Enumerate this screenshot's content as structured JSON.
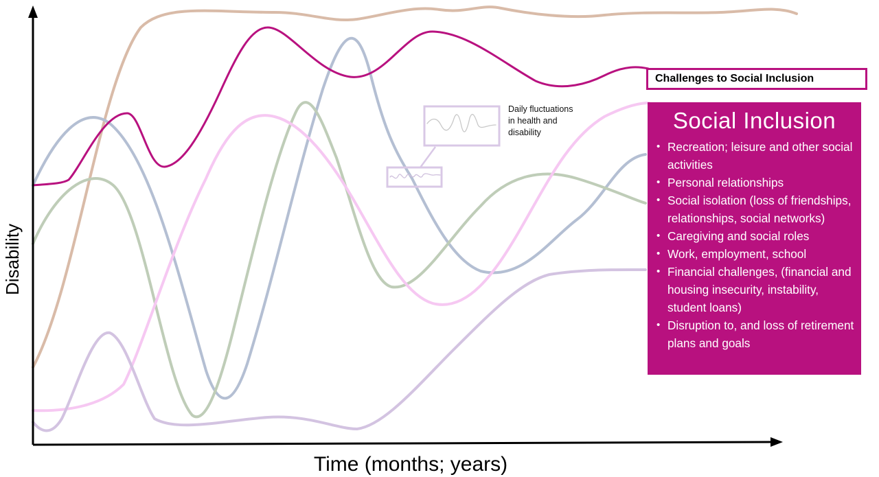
{
  "axes": {
    "y_label": "Disability",
    "x_label": "Time (months; years)"
  },
  "callout": {
    "lines": [
      "Daily fluctuations",
      "in health and",
      "disability"
    ]
  },
  "challenges_label": "Challenges to Social Inclusion",
  "social_inclusion": {
    "title": "Social Inclusion",
    "items": [
      "Recreation; leisure and other social activities",
      "Personal  relationships",
      "Social isolation (loss of friendships, relationships, social networks)",
      "Caregiving and social roles",
      "Work, employment, school",
      "Financial challenges, (financial and housing insecurity, instability, student loans)",
      "Disruption to, and loss of retirement plans and goals"
    ]
  },
  "colors": {
    "highlight_curve": "#B8117F",
    "box_fill": "#B8117F",
    "tan_curve": "#D9BBA8",
    "blue_curve": "#B4BFD3",
    "green_curve": "#BFCDB8",
    "pink_curve": "#F6C8F2",
    "lavender_curve": "#D3C3E1",
    "callout_frame": "#D9C8E6"
  }
}
